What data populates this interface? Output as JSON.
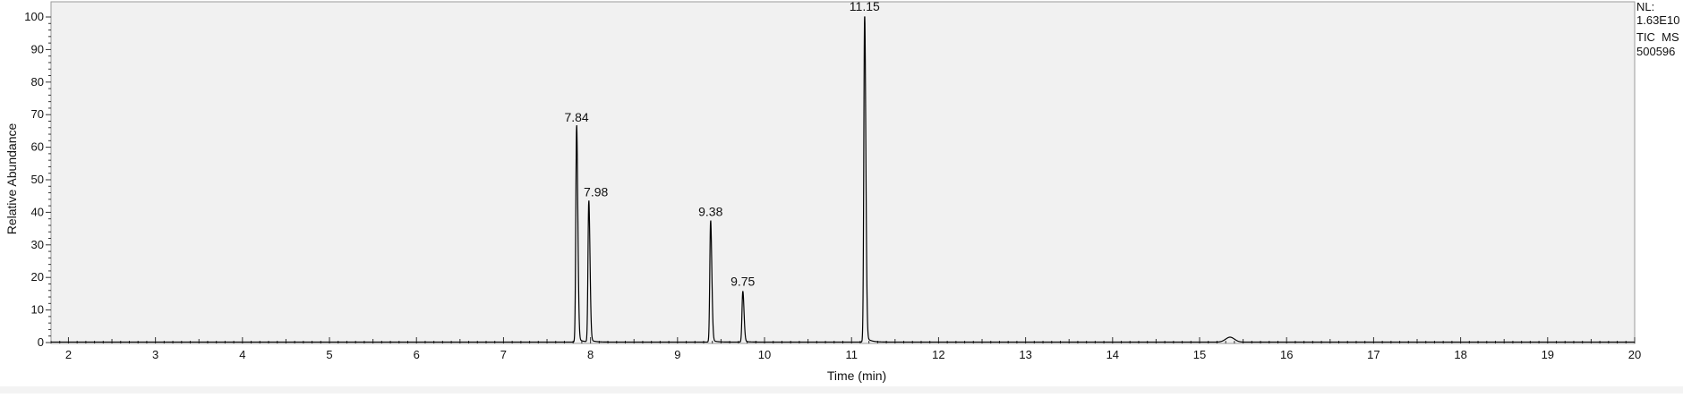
{
  "info_box": {
    "nl_label": "NL:",
    "nl_value": "1.63E10",
    "scan_filter": "TIC  MS",
    "sample_id": "500596"
  },
  "chart_data": {
    "type": "line",
    "title": "",
    "xlabel": "Time (min)",
    "ylabel": "Relative Abundance",
    "xlim": [
      1.8,
      20
    ],
    "ylim": [
      0,
      100
    ],
    "x_ticks": [
      2,
      3,
      4,
      5,
      6,
      7,
      8,
      9,
      10,
      11,
      12,
      13,
      14,
      15,
      16,
      17,
      18,
      19,
      20
    ],
    "y_ticks": [
      0,
      10,
      20,
      30,
      40,
      50,
      60,
      70,
      80,
      90,
      100
    ],
    "grid": false,
    "plot_background": "#f1f1f1",
    "trace_color": "#000000",
    "peaks": [
      {
        "rt": 7.84,
        "label": "7.84",
        "height": 66
      },
      {
        "rt": 7.98,
        "label": "7.98",
        "height": 43
      },
      {
        "rt": 9.38,
        "label": "9.38",
        "height": 37
      },
      {
        "rt": 9.75,
        "label": "9.75",
        "height": 15.5
      },
      {
        "rt": 11.15,
        "label": "11.15",
        "height": 100
      }
    ],
    "minor_peaks": [
      {
        "rt": 15.35,
        "height": 1.5
      }
    ]
  }
}
